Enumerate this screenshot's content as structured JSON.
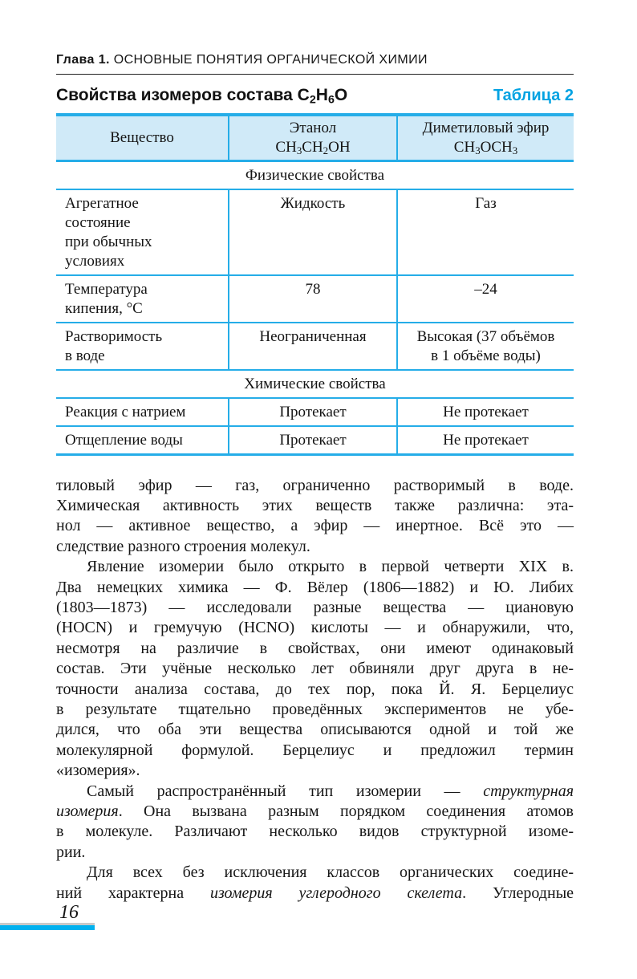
{
  "colors": {
    "accent_cyan": "#00a2e2",
    "table_border": "#25ade8",
    "table_header_bg": "#d0eaf8",
    "footer_bar": "#00b1ef",
    "footer_gray_line": "#c9c9c9",
    "text": "#141414"
  },
  "chapter_header": {
    "number": "Глава 1.",
    "title": "ОСНОВНЫЕ ПОНЯТИЯ ОРГАНИЧЕСКОЙ ХИМИИ"
  },
  "table_block": {
    "title": "Свойства изомеров состава C~2~H~6~O",
    "label": "Таблица 2",
    "columns": [
      "Вещество",
      "Этанол\nCH~3~CH~2~OH",
      "Диметиловый эфир\nCH~3~OCH~3~"
    ],
    "sections": [
      {
        "name": "Физические свойства",
        "rows": [
          {
            "property": "Агрегатное\nсостояние\nпри обычных\nусловиях",
            "ethanol": "Жидкость",
            "ether": "Газ"
          },
          {
            "property": "Температура\nкипения, °С",
            "ethanol": "78",
            "ether": "–24"
          },
          {
            "property": "Растворимость\nв воде",
            "ethanol": "Неограниченная",
            "ether": "Высокая (37 объёмов\nв 1 объёме воды)"
          }
        ]
      },
      {
        "name": "Химические свойства",
        "rows": [
          {
            "property": "Реакция с натрием",
            "ethanol": "Протекает",
            "ether": "Не протекает"
          },
          {
            "property": "Отщепление воды",
            "ethanol": "Протекает",
            "ether": "Не протекает"
          }
        ]
      }
    ]
  },
  "body": {
    "paragraphs": [
      {
        "indent": false,
        "justify_last": false,
        "lines": [
          "тиловый эфир — газ, ограниченно растворимый в воде.",
          "Химическая активность этих веществ также различна: эта-",
          "нол — активное вещество, а эфир — инертное. Всё это —",
          "следствие разного строения молекул."
        ]
      },
      {
        "indent": true,
        "justify_last": false,
        "lines": [
          "Явление изомерии было открыто в первой четверти XIX в.",
          "Два немецких химика — Ф. Вёлер (1806—1882) и Ю. Либих",
          "(1803—1873) — исследовали разные вещества — циановую",
          "(HOCN) и гремучую (HCNO) кислоты — и обнаружили, что,",
          "несмотря на различие в свойствах, они имеют одинаковый",
          "состав. Эти учёные несколько лет обвиняли друг друга в не-",
          "точности анализа состава, до тех пор, пока Й. Я. Берцелиус",
          "в результате тщательно проведённых экспериментов не убе-",
          "дился, что оба эти вещества описываются одной и той же",
          "молекулярной формулой. Берцелиус и предложил термин",
          "«изомерия»."
        ]
      },
      {
        "indent": true,
        "justify_last": false,
        "lines": [
          "Самый распространённый тип изомерии — *структурная*",
          "*изомерия*. Она вызвана разным порядком соединения атомов",
          "в молекуле. Различают несколько видов структурной изоме-",
          "рии."
        ]
      },
      {
        "indent": true,
        "justify_last": true,
        "lines": [
          "Для всех без исключения классов органических соедине-",
          "ний характерна *изомерия углеродного скелета*. Углеродные"
        ]
      }
    ]
  },
  "footer": {
    "page_number": "16"
  }
}
